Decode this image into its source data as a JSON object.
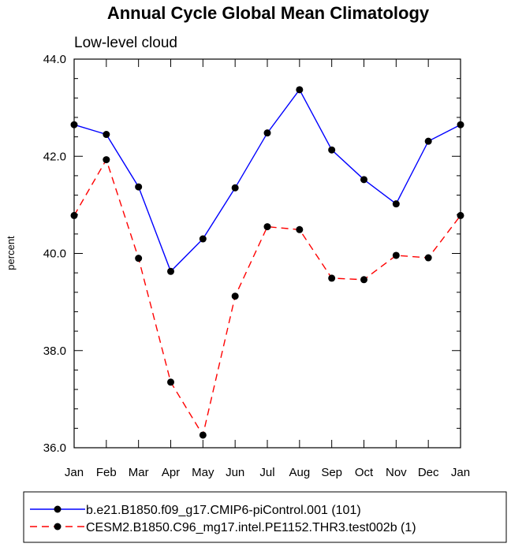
{
  "chart_data": {
    "type": "line",
    "title": "Annual Cycle Global Mean Climatology",
    "subtitle": "Low-level cloud",
    "xlabel": "",
    "ylabel": "percent",
    "categories": [
      "Jan",
      "Feb",
      "Mar",
      "Apr",
      "May",
      "Jun",
      "Jul",
      "Aug",
      "Sep",
      "Oct",
      "Nov",
      "Dec",
      "Jan"
    ],
    "ylim": [
      36.0,
      44.0
    ],
    "yticks": [
      "36.0",
      "38.0",
      "40.0",
      "42.0",
      "44.0"
    ],
    "grid": false,
    "legend_position": "bottom",
    "series": [
      {
        "name": "b.e21.B1850.f09_g17.CMIP6-piControl.001 (101)",
        "color": "#0000ff",
        "dash": "solid",
        "values": [
          42.65,
          42.45,
          41.37,
          39.63,
          40.3,
          41.35,
          42.48,
          43.37,
          42.13,
          41.52,
          41.02,
          42.31,
          42.65
        ]
      },
      {
        "name": "CESM2.B1850.C96_mg17.intel.PE1152.THR3.test002b (1)",
        "color": "#ff0000",
        "dash": "dashed",
        "values": [
          40.78,
          41.93,
          39.9,
          37.35,
          36.26,
          39.12,
          40.55,
          40.49,
          39.49,
          39.46,
          39.96,
          39.91,
          40.78
        ]
      }
    ]
  }
}
